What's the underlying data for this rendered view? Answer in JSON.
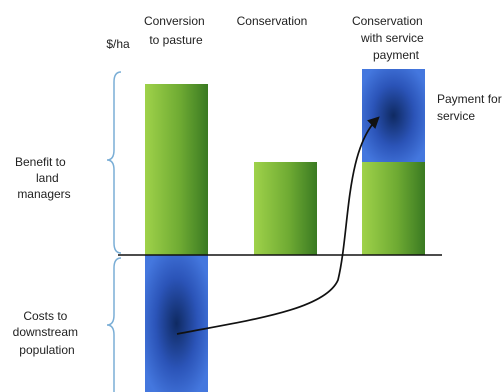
{
  "y_unit": "$/ha",
  "columns": [
    {
      "title_lines": [
        "Conversion",
        "to pasture"
      ]
    },
    {
      "title_lines": [
        "Conservation"
      ]
    },
    {
      "title_lines": [
        "Conservation",
        "with service",
        "payment"
      ]
    }
  ],
  "side_labels": {
    "benefit_lines": [
      "Benefit to",
      "land",
      "managers"
    ],
    "costs_lines": [
      "Costs to",
      "downstream",
      "population"
    ]
  },
  "payment_label_lines": [
    "Payment for",
    "service"
  ],
  "colors": {
    "green_light": "#8cc43e",
    "green_dark": "#3f7e22",
    "blue_light": "#3f6bd6",
    "blue_dark": "#0e2a63",
    "brace": "#7aaed6",
    "axis": "#111111"
  },
  "chart_data": {
    "type": "bar",
    "categories": [
      "Conversion to pasture",
      "Conservation",
      "Conservation with service payment"
    ],
    "series": [
      {
        "values": [
          3.0,
          1.6,
          1.6
        ]
      },
      {
        "values": [
          0,
          0,
          1.6
        ]
      },
      {
        "values": [
          -2.5,
          0,
          0
        ]
      }
    ],
    "ylabel": "$/ha",
    "ylim": [
      -2.6,
      3.7
    ]
  }
}
